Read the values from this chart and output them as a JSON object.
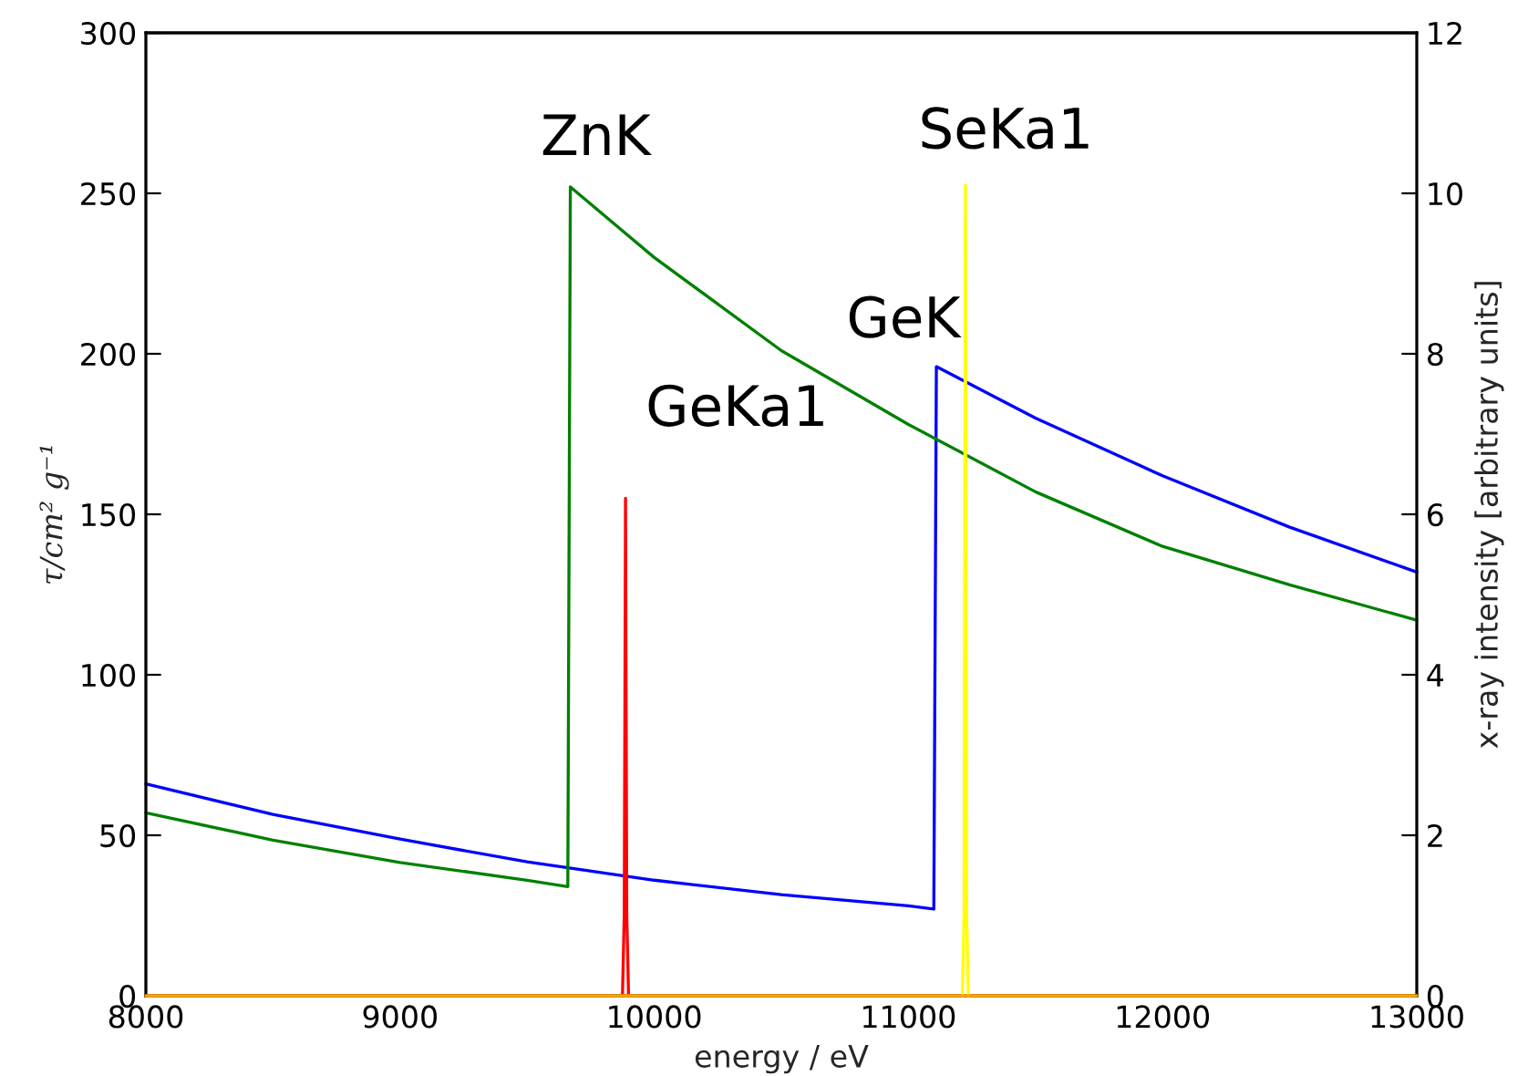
{
  "chart_data": {
    "type": "line",
    "xlabel": "energy / eV",
    "ylabel": "τ/cm² g⁻¹",
    "y2label": "x-ray intensity [arbitrary units]",
    "xlim": [
      8000,
      13000
    ],
    "xticks": [
      8000,
      9000,
      10000,
      11000,
      12000,
      13000
    ],
    "ylim": [
      0,
      300
    ],
    "yticks": [
      0,
      50,
      100,
      150,
      200,
      250,
      300
    ],
    "y2lim": [
      0,
      12
    ],
    "y2ticks": [
      0,
      2,
      4,
      6,
      8,
      10,
      12
    ],
    "grid": false,
    "legend": false,
    "series": [
      {
        "color": "#0000ff",
        "x": [
          8000,
          8500,
          9000,
          9500,
          10000,
          10500,
          11000,
          11100,
          11110,
          11500,
          12000,
          12500,
          13000
        ],
        "values": [
          66,
          56.5,
          48.8,
          41.7,
          36,
          31.5,
          28,
          27,
          196,
          180,
          162,
          146,
          132
        ]
      },
      {
        "color": "#008000",
        "x": [
          8000,
          8500,
          9000,
          9500,
          9660,
          9670,
          10000,
          10500,
          11000,
          11500,
          12000,
          12500,
          13000
        ],
        "values": [
          57,
          48.5,
          41.5,
          36,
          34,
          252,
          230,
          201,
          178,
          157,
          140,
          128,
          117
        ]
      },
      {
        "color": "#ff0000",
        "axis": "y2",
        "x": [
          9875,
          9882,
          9886,
          9887,
          9888,
          9892,
          9899
        ],
        "values": [
          0,
          1,
          5,
          6.2,
          5,
          1,
          0
        ]
      },
      {
        "color": "#ffff00",
        "axis": "y2",
        "x": [
          11212,
          11219,
          11223,
          11224,
          11225,
          11229,
          11236
        ],
        "values": [
          0,
          1,
          8,
          10.1,
          8,
          1,
          0
        ]
      },
      {
        "color": "#ffa500",
        "axis": "y2",
        "x": [
          8000,
          13000
        ],
        "values": [
          0,
          0
        ]
      }
    ],
    "annotations": [
      {
        "text": "ZnK",
        "x": 9670,
        "y": 252
      },
      {
        "text": "SeKa1",
        "x": 11224,
        "y": 252.5
      },
      {
        "text": "GeK",
        "x": 11110,
        "y": 196
      },
      {
        "text": "GeKa1",
        "x": 9887,
        "y": 155
      }
    ]
  }
}
